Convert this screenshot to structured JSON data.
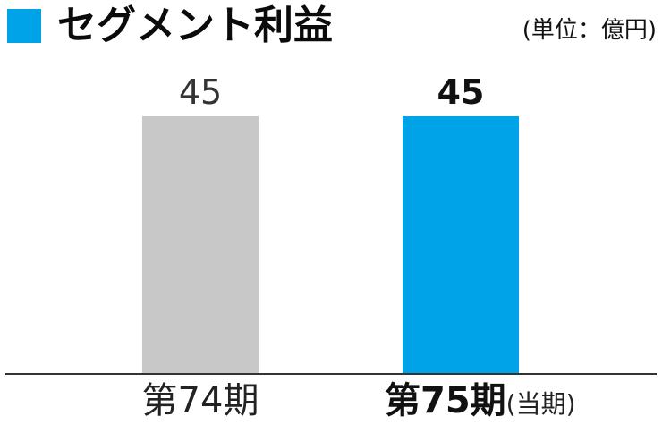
{
  "header": {
    "title": "セグメント利益",
    "unit": "(単位：億円)"
  },
  "colors": {
    "accent": "#00a3e8",
    "previous_bar": "#c8c8c8",
    "axis": "#333333"
  },
  "chart_data": {
    "type": "bar",
    "title": "セグメント利益",
    "unit": "億円",
    "categories": [
      "第74期",
      "第75期"
    ],
    "category_notes": [
      "",
      "(当期)"
    ],
    "values": [
      45,
      45
    ],
    "value_labels": [
      "45",
      "45"
    ],
    "xlabel": "",
    "ylabel": "",
    "ylim": [
      0,
      45
    ],
    "grid": false,
    "highlighted_category": "第75期"
  }
}
